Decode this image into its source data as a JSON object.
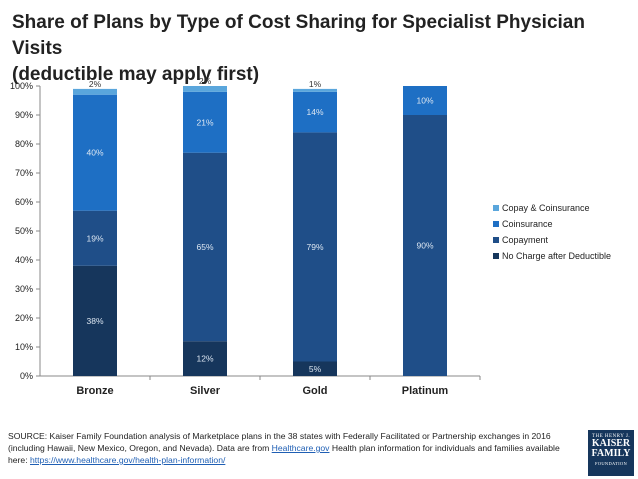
{
  "title": {
    "line1": "Share of Plans by Type of Cost Sharing for Specialist Physician Visits",
    "line2": "(deductible may apply first)"
  },
  "chart_data": {
    "type": "bar",
    "stacked": true,
    "categories": [
      "Bronze",
      "Silver",
      "Gold",
      "Platinum"
    ],
    "series": [
      {
        "name": "No Charge after Deductible",
        "values": [
          38,
          12,
          5,
          0
        ],
        "labels": [
          "38%",
          "12%",
          "5%",
          ""
        ],
        "color": "#16365c"
      },
      {
        "name": "Copayment",
        "values": [
          19,
          65,
          79,
          90
        ],
        "labels": [
          "19%",
          "65%",
          "79%",
          "90%"
        ],
        "color": "#1f4e88"
      },
      {
        "name": "Coinsurance",
        "values": [
          40,
          21,
          14,
          10
        ],
        "labels": [
          "40%",
          "21%",
          "14%",
          "10%"
        ],
        "color": "#1e6fc4"
      },
      {
        "name": "Copay & Coinsurance",
        "values": [
          2,
          2,
          1,
          0
        ],
        "labels": [
          "2%",
          "2%",
          "1%",
          ""
        ],
        "color": "#5aa6dc"
      }
    ],
    "ylim": [
      0,
      100
    ],
    "yticks": [
      "0%",
      "10%",
      "20%",
      "30%",
      "40%",
      "50%",
      "60%",
      "70%",
      "80%",
      "90%",
      "100%"
    ],
    "legend_position": "right",
    "grid": false
  },
  "source": {
    "text1": "SOURCE: Kaiser Family Foundation analysis of Marketplace plans in the 38 states with Federally Facilitated or Partnership exchanges in 2016 (including Hawaii, New Mexico, Oregon, and Nevada). Data are from ",
    "link1": "Healthcare.gov",
    "text2": " Health plan information for individuals and families available here: ",
    "link2": "https://www.healthcare.gov/health-plan-information/"
  },
  "logo": {
    "line1": "THE HENRY J.",
    "line2": "KAISER",
    "line3": "FAMILY",
    "line4": "FOUNDATION"
  }
}
